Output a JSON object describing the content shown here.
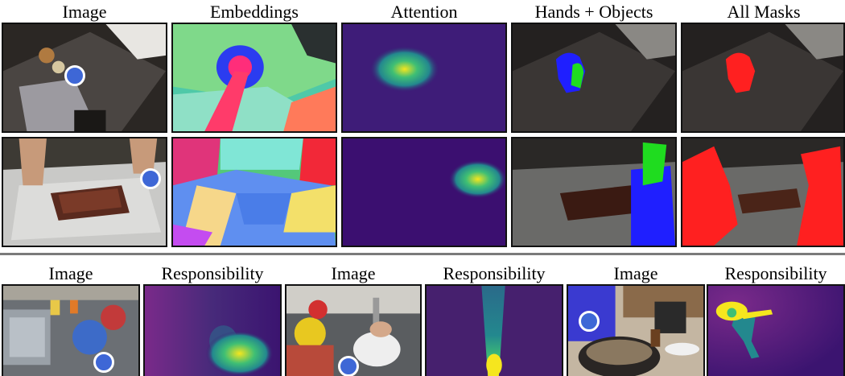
{
  "top_titles": [
    "Image",
    "Embeddings",
    "Attention",
    "Hands + Objects",
    "All Masks"
  ],
  "bottom_titles": [
    "Image",
    "Responsibility",
    "Image",
    "Responsibility",
    "Image",
    "Responsibility"
  ],
  "colors": {
    "query_dot": "#3e67d6",
    "attention_background": "#3b0f70",
    "attention_peak": "#f5e61e",
    "hands_mask": "#1f1fff",
    "objects_mask": "#1fdc1f",
    "all_masks": "#ff2020",
    "divider": "#7a7a7a"
  }
}
